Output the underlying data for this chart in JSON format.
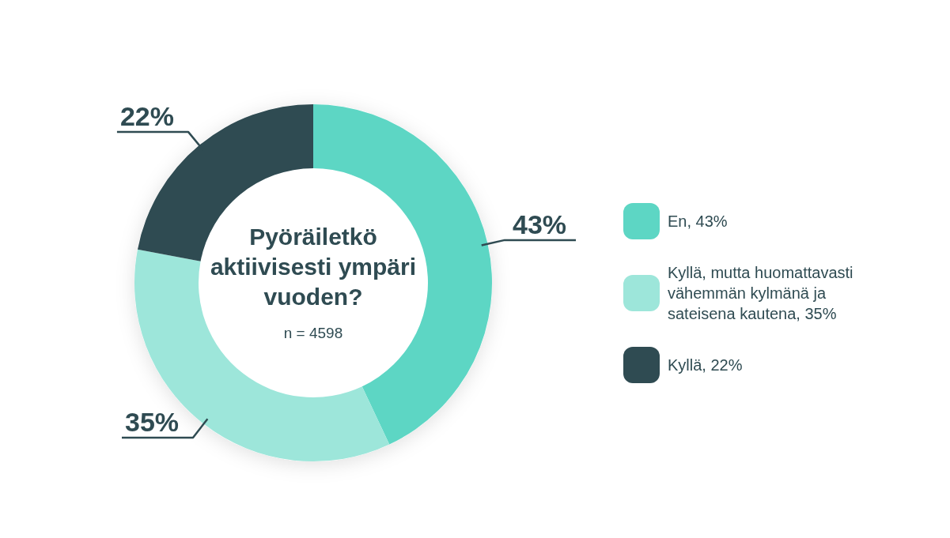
{
  "chart_data": {
    "type": "donut",
    "title": "Pyöräiletkö aktiivisesti ympäri vuoden?",
    "subtitle": "n = 4598",
    "categories": [
      "En, 43%",
      "Kyllä, mutta huomattavasti vähemmän kylmänä ja sateisena kautena, 35%",
      "Kyllä, 22%"
    ],
    "values": [
      43,
      35,
      22
    ],
    "colors": [
      "#5dd6c4",
      "#9de6da",
      "#2f4b52"
    ],
    "value_labels": [
      "43%",
      "35%",
      "22%"
    ],
    "legend": "right"
  }
}
